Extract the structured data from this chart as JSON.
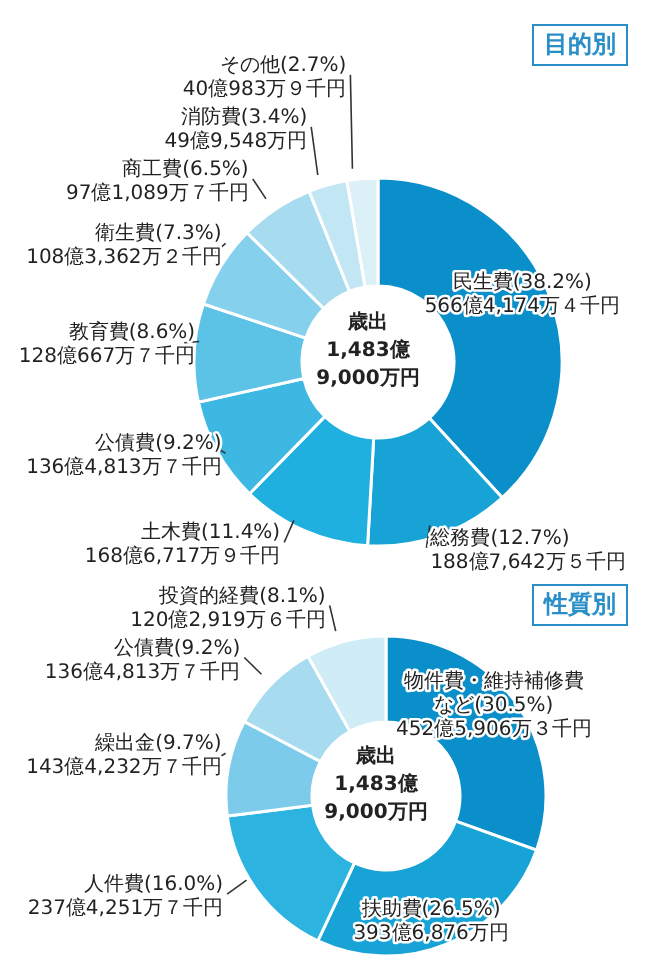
{
  "chart_data": [
    {
      "type": "donut",
      "title": "目的別",
      "categories": [
        "民生費(38.2%)\n566億4,174万４千円",
        "総務費(12.7%)\n188億7,642万５千円",
        "土木費(11.4%)\n168億6,717万９千円",
        "公債費(9.2%)\n136億4,813万７千円",
        "教育費(8.6%)\n128億667万７千円",
        "衛生費(7.3%)\n108億3,362万２千円",
        "商工費(6.5%)\n97億1,089万７千円",
        "消防費(3.4%)\n49億9,548万円",
        "その他(2.7%)\n40億983万９千円"
      ],
      "values": [
        38.2,
        12.7,
        11.4,
        9.2,
        8.6,
        7.3,
        6.5,
        3.4,
        2.7
      ],
      "colors": [
        "#0a8fcb",
        "#17a3d6",
        "#1fb0df",
        "#3cb8e2",
        "#5cc2e6",
        "#85d0ec",
        "#a7dcf0",
        "#c3e6f4",
        "#dcf0f8"
      ],
      "annotations": [
        "歳出\n1,483億\n9,000万円"
      ]
    },
    {
      "type": "donut",
      "title": "性質別",
      "categories": [
        "物件費・維持補修費など(30.5%)\n452億5,906万３千円",
        "扶助費(26.5%)\n393億6,876万円",
        "人件費(16.0%)\n237億4,251万７千円",
        "繰出金(9.7%)\n143億4,232万７千円",
        "公債費(9.2%)\n136億4,813万７千円",
        "投資的経費(8.1%)\n120億2,919万６千円"
      ],
      "values": [
        30.5,
        26.5,
        16.0,
        9.7,
        9.2,
        8.1
      ],
      "colors": [
        "#0a8fcb",
        "#17a3d6",
        "#2cb3e0",
        "#7ccbea",
        "#a7dcf0",
        "#d0ecf6"
      ],
      "annotations": [
        "歳出\n1,483億\n9,000万円"
      ]
    }
  ]
}
